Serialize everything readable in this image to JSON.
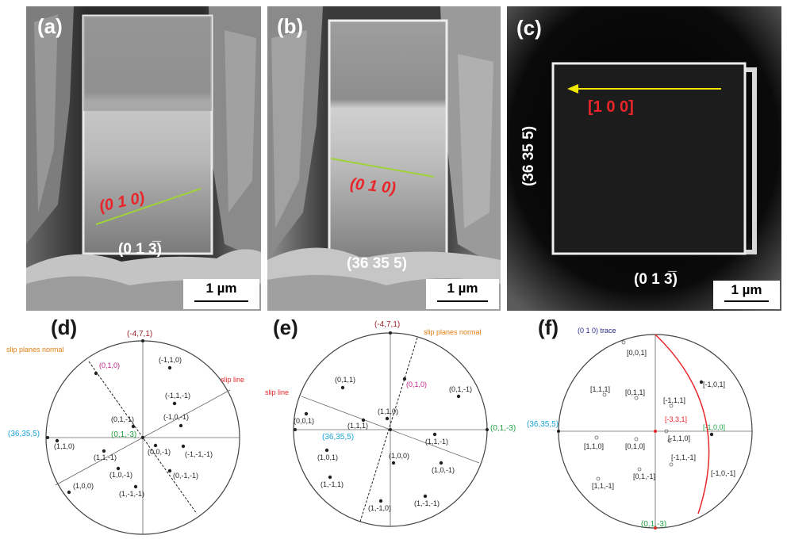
{
  "panels": {
    "a": {
      "label": "(a)",
      "plane_label": "(0 1 0)",
      "bottom_label": "(0 1 3̅)",
      "scale_bar": "1 µm"
    },
    "b": {
      "label": "(b)",
      "plane_label": "(0 1 0)",
      "bottom_label": "(36 35 5)",
      "scale_bar": "1 µm"
    },
    "c": {
      "label": "(c)",
      "direction_label": "[1 0 0]",
      "side_label": "(36 35 5)",
      "bottom_label": "(0 1 3̅)",
      "scale_bar": "1 µm"
    },
    "d": {
      "label": "(d)",
      "top_pole": "(-4,7,1)",
      "left_pole": "(36,35,5)",
      "center_pole": "(0,1,-3)",
      "slip_planes_normal": "slip planes normal",
      "slip_line": "slip line",
      "points": [
        "(0,1,0)",
        "(-1,1,0)",
        "(-1,1,-1)",
        "(0,1,-1)",
        "(-1,0,-1)",
        "(1,1,0)",
        "(1,1,-1)",
        "(0,0,-1)",
        "(-1,-1,-1)",
        "(1,0,-1)",
        "(0,-1,-1)",
        "(1,0,0)",
        "(1,-1,-1)"
      ]
    },
    "e": {
      "label": "(e)",
      "top_pole": "(-4,7,1)",
      "left_pole": "(36,35,5)",
      "right_pole": "(0,1,-3)",
      "slip_planes_normal": "slip planes normal",
      "slip_line": "slip line",
      "points": [
        "(0,1,1)",
        "(0,1,0)",
        "(0,1,-1)",
        "(0,0,1)",
        "(1,1,1)",
        "(1,1,0)",
        "(1,1,-1)",
        "(1,0,1)",
        "(1,0,0)",
        "(1,0,-1)",
        "(1,-1,1)",
        "(1,-1,0)",
        "(1,-1,-1)"
      ]
    },
    "f": {
      "label": "(f)",
      "trace_label": "(0 1 0) trace",
      "left_pole": "(36,35,5)",
      "bottom_pole": "(0,1,-3)",
      "points": [
        "[0,0,1]",
        "[-1,0,1]",
        "[1,1,1]",
        "[0,1,1]",
        "[-1,1,1]",
        "[-3,3,1]",
        "[-1,0,0]",
        "[-1,1,0]",
        "[1,1,0]",
        "[0,1,0]",
        "[-1,1,-1]",
        "[-1,0,-1]",
        "[1,1,-1]",
        "[0,1,-1]"
      ]
    }
  },
  "colors": {
    "red": "#e8262a",
    "green_line": "#9fd23a",
    "yellow_arrow": "#f2e600",
    "cyan": "#1aa3d9",
    "green_label": "#20a040",
    "magenta": "#c0208a",
    "orange": "#e07d10",
    "navy": "#2a2a8a",
    "dark_red": "#a0202a"
  }
}
